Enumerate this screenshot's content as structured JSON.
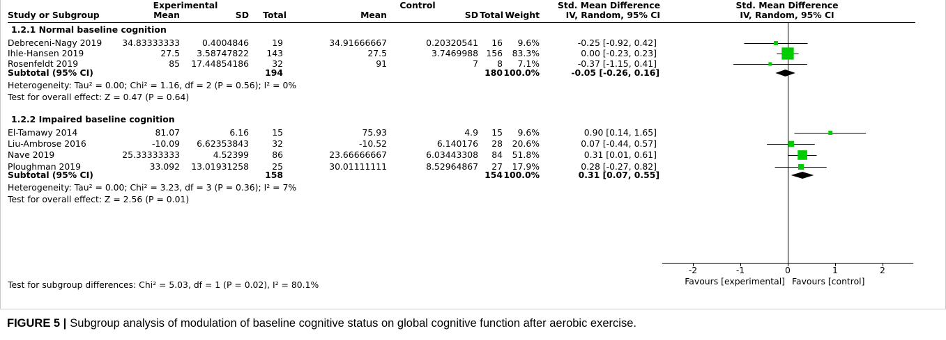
{
  "header": {
    "experimental": "Experimental",
    "control": "Control",
    "smd_title": "Std. Mean Difference",
    "smd_method": "IV, Random, 95% CI",
    "plot_title": "Std. Mean Difference",
    "plot_method": "IV, Random, 95% CI",
    "study": "Study or Subgroup",
    "exp_mean": "Mean",
    "exp_sd": "SD",
    "exp_total": "Total",
    "ctl_mean": "Mean",
    "ctl_sd": "SD",
    "ctl_total": "Total",
    "weight": "Weight"
  },
  "chart_data": {
    "type": "scatter",
    "xlim": [
      -2.65,
      2.65
    ],
    "xticks": [
      -2,
      -1,
      0,
      1,
      2
    ],
    "reference_line": 0,
    "label_left": "Favours [experimental]",
    "label_right": "Favours [control]",
    "marker_color": "#00CC00",
    "summary_color": "#000000",
    "subgroups": [
      {
        "title": "1.2.1 Normal baseline cognition",
        "studies": [
          {
            "study": "Debreceni-Nagy 2019",
            "exp_mean": "34.83333333",
            "exp_sd": "0.4004846",
            "exp_total": "19",
            "ctl_mean": "34.91666667",
            "ctl_sd": "0.20320541",
            "ctl_total": "16",
            "weight": "9.6%",
            "effect": "-0.25 [-0.92, 0.42]"
          },
          {
            "study": "Ihle-Hansen 2019",
            "exp_mean": "27.5",
            "exp_sd": "3.58747822",
            "exp_total": "143",
            "ctl_mean": "27.5",
            "ctl_sd": "3.7469988",
            "ctl_total": "156",
            "weight": "83.3%",
            "effect": "0.00 [-0.23, 0.23]"
          },
          {
            "study": "Rosenfeldt 2019",
            "exp_mean": "85",
            "exp_sd": "17.44854186",
            "exp_total": "32",
            "ctl_mean": "91",
            "ctl_sd": "7",
            "ctl_total": "8",
            "weight": "7.1%",
            "effect": "-0.37 [-1.15, 0.41]"
          }
        ],
        "subtotal": {
          "label": "Subtotal (95% CI)",
          "exp_total": "194",
          "ctl_total": "180",
          "weight": "100.0%",
          "effect": "-0.05 [-0.26, 0.16]"
        },
        "heterogeneity": "Heterogeneity: Tau² = 0.00; Chi² = 1.16, df = 2 (P = 0.56); I² = 0%",
        "overall_effect": "Test for overall effect: Z = 0.47 (P = 0.64)"
      },
      {
        "title": "1.2.2 Impaired baseline cognition",
        "studies": [
          {
            "study": "El-Tamawy 2014",
            "exp_mean": "81.07",
            "exp_sd": "6.16",
            "exp_total": "15",
            "ctl_mean": "75.93",
            "ctl_sd": "4.9",
            "ctl_total": "15",
            "weight": "9.6%",
            "effect": "0.90 [0.14, 1.65]"
          },
          {
            "study": "Liu-Ambrose 2016",
            "exp_mean": "-10.09",
            "exp_sd": "6.62353843",
            "exp_total": "32",
            "ctl_mean": "-10.52",
            "ctl_sd": "6.140176",
            "ctl_total": "28",
            "weight": "20.6%",
            "effect": "0.07 [-0.44, 0.57]"
          },
          {
            "study": "Nave 2019",
            "exp_mean": "25.33333333",
            "exp_sd": "4.52399",
            "exp_total": "86",
            "ctl_mean": "23.66666667",
            "ctl_sd": "6.03443308",
            "ctl_total": "84",
            "weight": "51.8%",
            "effect": "0.31 [0.01, 0.61]"
          },
          {
            "study": "Ploughman 2019",
            "exp_mean": "33.092",
            "exp_sd": "13.01931258",
            "exp_total": "25",
            "ctl_mean": "30.01111111",
            "ctl_sd": "8.52964867",
            "ctl_total": "27",
            "weight": "17.9%",
            "effect": "0.28 [-0.27, 0.82]"
          }
        ],
        "subtotal": {
          "label": "Subtotal (95% CI)",
          "exp_total": "158",
          "ctl_total": "154",
          "weight": "100.0%",
          "effect": "0.31 [0.07, 0.55]"
        },
        "heterogeneity": "Heterogeneity: Tau² = 0.00; Chi² = 3.23, df = 3 (P = 0.36); I² = 7%",
        "overall_effect": "Test for overall effect: Z = 2.56 (P = 0.01)"
      }
    ],
    "subgroup_differences": "Test for subgroup differences: Chi² = 5.03, df = 1 (P = 0.02), I² = 80.1%"
  },
  "caption": {
    "label": "FIGURE 5 |",
    "text": "Subgroup analysis of modulation of baseline cognitive status on global cognitive function after aerobic exercise."
  }
}
